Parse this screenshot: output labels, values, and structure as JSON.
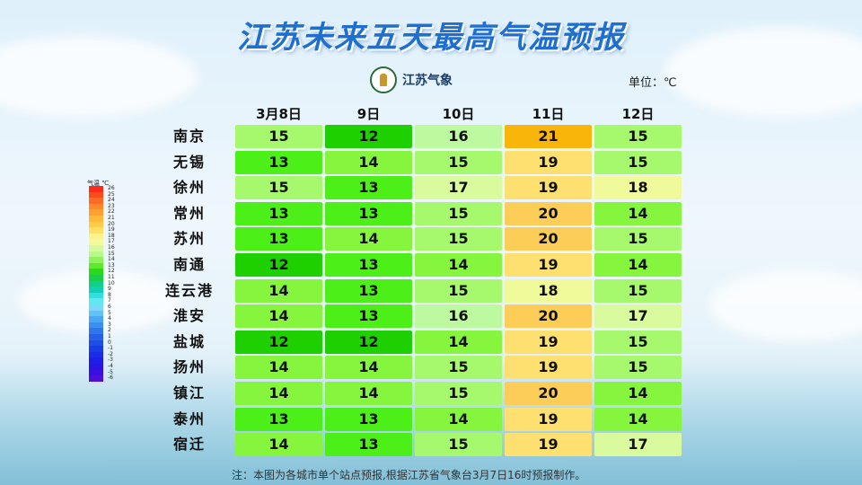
{
  "title": "江苏未来五天最高气温预报",
  "logo_text": "江苏气象",
  "unit": "单位：℃",
  "days": [
    "3月8日",
    "9日",
    "10日",
    "11日",
    "12日"
  ],
  "cities": [
    "南京",
    "无锡",
    "徐州",
    "常州",
    "苏州",
    "南通",
    "连云港",
    "淮安",
    "盐城",
    "扬州",
    "镇江",
    "泰州",
    "宿迁"
  ],
  "temps": [
    [
      "15",
      "12",
      "16",
      "21",
      "15"
    ],
    [
      "13",
      "14",
      "15",
      "19",
      "15"
    ],
    [
      "15",
      "13",
      "17",
      "19",
      "18"
    ],
    [
      "13",
      "13",
      "15",
      "20",
      "14"
    ],
    [
      "13",
      "14",
      "15",
      "20",
      "15"
    ],
    [
      "12",
      "13",
      "14",
      "19",
      "14"
    ],
    [
      "14",
      "13",
      "15",
      "18",
      "15"
    ],
    [
      "14",
      "13",
      "16",
      "20",
      "17"
    ],
    [
      "12",
      "12",
      "14",
      "19",
      "15"
    ],
    [
      "14",
      "14",
      "15",
      "19",
      "15"
    ],
    [
      "14",
      "14",
      "15",
      "20",
      "14"
    ],
    [
      "13",
      "13",
      "14",
      "19",
      "14"
    ],
    [
      "14",
      "13",
      "15",
      "19",
      "17"
    ]
  ],
  "legend": {
    "title": "气温  ℃",
    "labels": [
      "26",
      "25",
      "24",
      "23",
      "22",
      "21",
      "20",
      "19",
      "18",
      "17",
      "16",
      "15",
      "14",
      "13",
      "12",
      "11",
      "10",
      "9",
      "8",
      "7",
      "6",
      "5",
      "4",
      "3",
      "2",
      "1",
      "0",
      "-1",
      "-2",
      "-3",
      "-4",
      "-5",
      "-6"
    ]
  },
  "colors": {
    "title": "#1e6fd0",
    "t12": "#1fd000",
    "t13": "#4cf018",
    "t14": "#86f53d",
    "t15": "#a6f86c",
    "t16": "#bdf99e",
    "t17": "#dafa9e",
    "t18": "#f1fa9a",
    "t19": "#fde070",
    "t20": "#fcce58",
    "t21": "#fab50a"
  },
  "note": "注：本图为各城市单个站点预报,根据江苏省气象台3月7日16时预报制作。"
}
